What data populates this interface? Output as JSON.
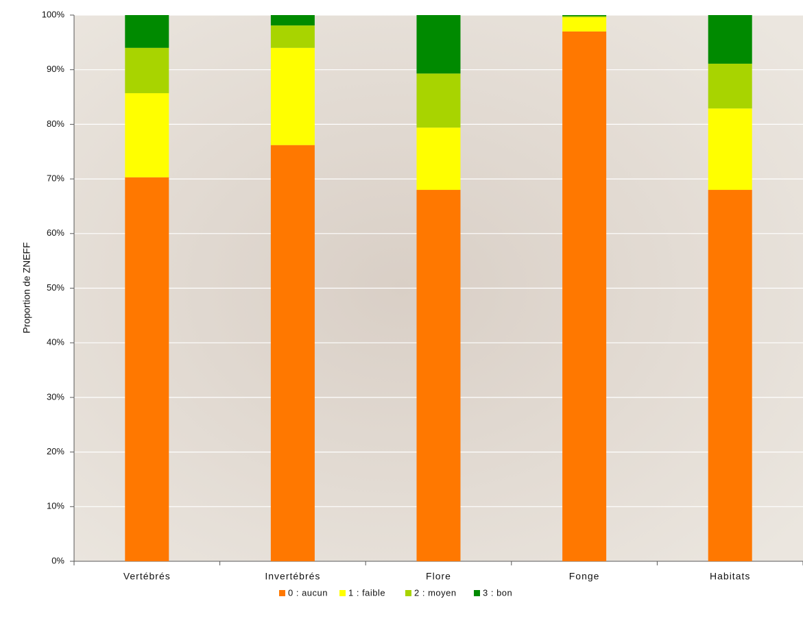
{
  "chart_data": {
    "type": "stacked-bar",
    "y_label": "Proportion de ZNEFF",
    "categories": [
      "Vertébrés",
      "Invertébrés",
      "Flore",
      "Fonge",
      "Habitats"
    ],
    "series": [
      {
        "name": "0 : aucun",
        "color": "#ff7800",
        "values": [
          70.3,
          76.2,
          68,
          97,
          68
        ]
      },
      {
        "name": "1 : faible",
        "color": "#ffff00",
        "values": [
          15.4,
          17.8,
          11.4,
          2.6,
          14.9
        ]
      },
      {
        "name": "2 : moyen",
        "color": "#a8d400",
        "values": [
          8.3,
          4.1,
          9.9,
          0.2,
          8.2
        ]
      },
      {
        "name": "3 : bon",
        "color": "#008a00",
        "values": [
          6,
          1.9,
          10.7,
          0.2,
          8.9
        ]
      }
    ],
    "ylim": [
      0,
      100
    ],
    "yticks": [
      {
        "value": 0,
        "label": "0%"
      },
      {
        "value": 10,
        "label": "10%"
      },
      {
        "value": 20,
        "label": "20%"
      },
      {
        "value": 30,
        "label": "30%"
      },
      {
        "value": 40,
        "label": "40%"
      },
      {
        "value": 50,
        "label": "50%"
      },
      {
        "value": 60,
        "label": "60%"
      },
      {
        "value": 70,
        "label": "70%"
      },
      {
        "value": 80,
        "label": "80%"
      },
      {
        "value": 90,
        "label": "90%"
      },
      {
        "value": 100,
        "label": "100%"
      }
    ],
    "grid": true,
    "legend": "bottom"
  }
}
